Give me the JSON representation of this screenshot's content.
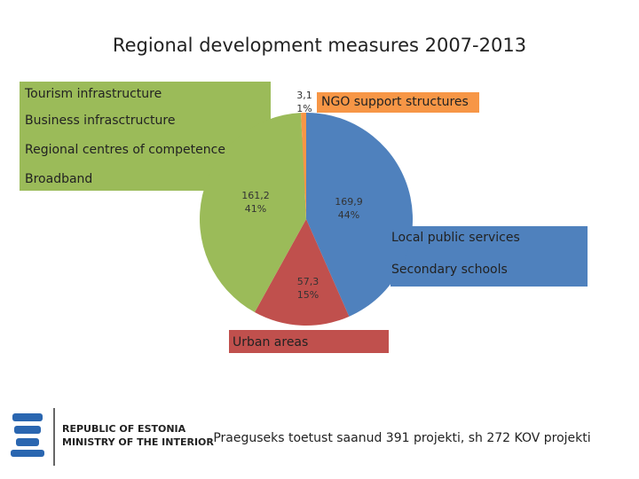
{
  "chart_data": {
    "type": "pie",
    "title": "Regional development measures 2007-2013",
    "categories": [
      [
        "Local public services",
        "Secondary schools"
      ],
      [
        "Urban areas"
      ],
      [
        "Tourism infrastructure",
        "Business infrasctructure",
        "Regional centres of competence",
        "Broadband"
      ],
      [
        "NGO support structures"
      ]
    ],
    "values": [
      169.9,
      57.3,
      161.2,
      3.1
    ],
    "value_labels": [
      "169,9",
      "57,3",
      "161,2",
      "3,1"
    ],
    "percents": [
      44,
      15,
      41,
      1
    ],
    "percent_labels": [
      "44%",
      "15%",
      "41%",
      "1%"
    ],
    "colors": [
      "#4f81bd",
      "#c0504d",
      "#9bbb59",
      "#f79646"
    ]
  },
  "footer": {
    "logo_line_1": "REPUBLIC OF ESTONIA",
    "logo_line_2": "MINISTRY OF THE INTERIOR",
    "note": "Praeguseks toetust saanud 391 projekti,  sh 272 KOV projekti"
  }
}
